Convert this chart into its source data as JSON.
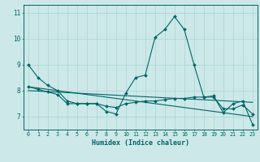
{
  "xlabel": "Humidex (Indice chaleur)",
  "bg_color": "#cce8e8",
  "grid_color": "#aad4d4",
  "line_color": "#006666",
  "xlim": [
    -0.5,
    23.5
  ],
  "ylim": [
    6.5,
    11.3
  ],
  "yticks": [
    7,
    8,
    9,
    10,
    11
  ],
  "xticks": [
    0,
    1,
    2,
    3,
    4,
    5,
    6,
    7,
    8,
    9,
    10,
    11,
    12,
    13,
    14,
    15,
    16,
    17,
    18,
    19,
    20,
    21,
    22,
    23
  ],
  "lines": [
    {
      "x": [
        0,
        1,
        2,
        3,
        4,
        5,
        6,
        7,
        8,
        9,
        10,
        11,
        12,
        13,
        14,
        15,
        16,
        17,
        18,
        19,
        20,
        21,
        22,
        23
      ],
      "y": [
        9.0,
        8.5,
        8.2,
        8.0,
        7.6,
        7.5,
        7.5,
        7.5,
        7.2,
        7.1,
        7.9,
        8.5,
        8.6,
        10.05,
        10.35,
        10.85,
        10.35,
        9.0,
        7.75,
        7.8,
        7.15,
        7.5,
        7.6,
        6.7
      ]
    },
    {
      "x": [
        0,
        1,
        2,
        3,
        4,
        5,
        6,
        7,
        8,
        9,
        10,
        11,
        12,
        13,
        14,
        15,
        16,
        17,
        18,
        19,
        20,
        21,
        22,
        23
      ],
      "y": [
        8.15,
        8.05,
        7.95,
        7.85,
        7.5,
        7.5,
        7.5,
        7.5,
        7.4,
        7.35,
        7.5,
        7.55,
        7.6,
        7.6,
        7.65,
        7.7,
        7.7,
        7.75,
        7.75,
        7.75,
        7.3,
        7.3,
        7.45,
        7.1
      ]
    },
    {
      "x": [
        0,
        23
      ],
      "y": [
        8.15,
        7.0
      ]
    },
    {
      "x": [
        0,
        23
      ],
      "y": [
        8.0,
        7.55
      ]
    }
  ]
}
